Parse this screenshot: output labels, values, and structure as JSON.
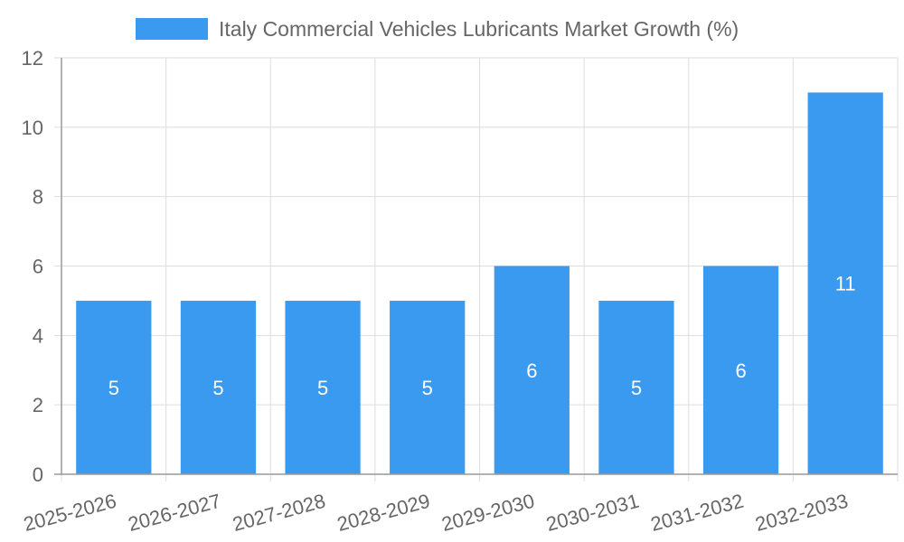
{
  "chart_data": {
    "type": "bar",
    "series": [
      {
        "name": "Italy Commercial Vehicles Lubricants Market Growth (%)",
        "values": [
          5,
          5,
          5,
          5,
          6,
          5,
          6,
          11
        ],
        "color": "#3a9af0"
      }
    ],
    "categories": [
      "2025-2026",
      "2026-2027",
      "2027-2028",
      "2028-2029",
      "2029-2030",
      "2030-2031",
      "2031-2032",
      "2032-2033"
    ],
    "yticks": [
      "0",
      "2",
      "4",
      "6",
      "8",
      "10",
      "12"
    ],
    "ylim": [
      0,
      12
    ],
    "grid": true,
    "legend": "top-center",
    "data_labels": [
      "5",
      "5",
      "5",
      "5",
      "6",
      "5",
      "6",
      "11"
    ],
    "colors": {
      "grid": "#dddddd",
      "axis": "#999999",
      "text": "#666666",
      "label": "#ffffff"
    }
  }
}
